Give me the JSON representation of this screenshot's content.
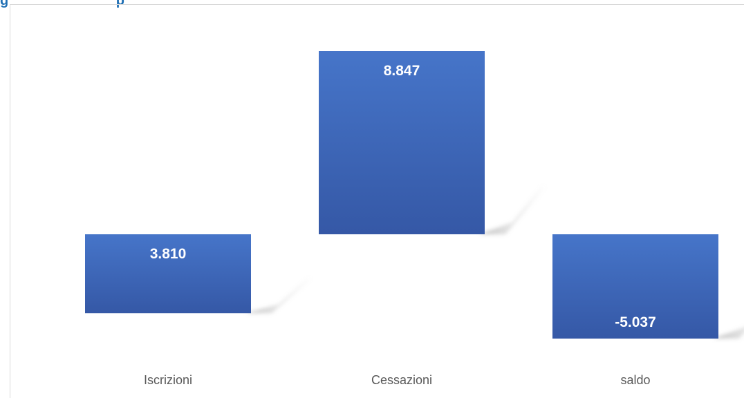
{
  "title_fragment": "g                            p",
  "colors": {
    "bar_top": "#4675c9",
    "bar_bottom": "#3558a6",
    "data_label": "#ffffff",
    "category_label": "#595959",
    "title": "#1f6fb4"
  },
  "chart_data": {
    "type": "bar",
    "categories": [
      "Iscrizioni",
      "Cessazioni",
      "saldo"
    ],
    "values": [
      3810,
      8847,
      -5037
    ],
    "value_labels": [
      "3.810",
      "8.847",
      "-5.037"
    ],
    "chart_style": "waterfall",
    "grid": false,
    "legend": "none"
  }
}
